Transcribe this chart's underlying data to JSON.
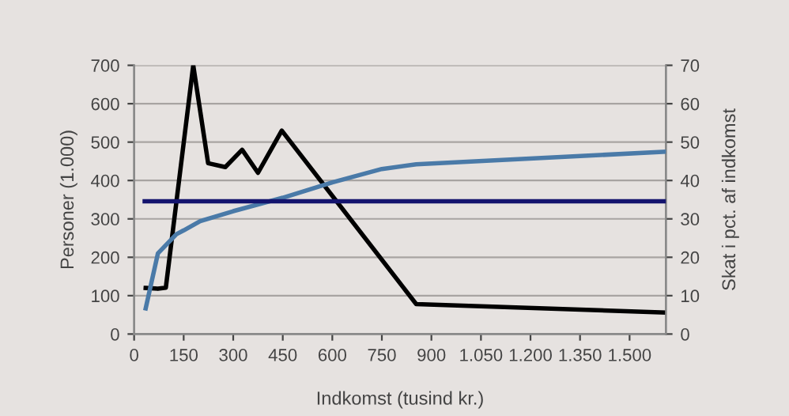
{
  "chart_data": {
    "type": "line",
    "xlabel": "Indkomst (tusind kr.)",
    "ylabel": "Personer (1.000)",
    "y2label": "Skat i pct. af indkomst",
    "series": [
      {
        "color": "#000000",
        "x": [
          35,
          72,
          96,
          179,
          224,
          276,
          327,
          375,
          447,
          854,
          1610
        ],
        "values": [
          120,
          118,
          121,
          700,
          445,
          435,
          480,
          420,
          530,
          78,
          56
        ]
      },
      {
        "color": "#4a7aa8",
        "axis": "y2",
        "x": [
          35,
          72,
          128,
          150,
          200,
          300,
          450,
          600,
          750,
          854,
          1610
        ],
        "values": [
          6.7,
          21,
          26,
          27,
          29.4,
          32,
          35.5,
          39.5,
          43,
          44.2,
          47.5
        ]
      },
      {
        "color": "#14146e",
        "axis": "y2",
        "x": [
          32,
          1610
        ],
        "values": [
          34.6,
          34.6
        ]
      }
    ],
    "xlim": [
      0,
      1610
    ],
    "xticks": [
      0,
      150,
      300,
      450,
      600,
      750,
      900,
      {
        "value": 1050,
        "label": "1.050"
      },
      {
        "value": 1200,
        "label": "1.200"
      },
      {
        "value": 1350,
        "label": "1.350"
      },
      {
        "value": 1500,
        "label": "1.500"
      }
    ],
    "ylim": [
      0,
      700
    ],
    "yticks": [
      0,
      100,
      200,
      300,
      400,
      500,
      600,
      700
    ],
    "y2lim": [
      0,
      70
    ],
    "y2ticks": [
      0,
      10,
      20,
      30,
      40,
      50,
      60,
      70
    ],
    "grid": "y",
    "legend": false
  }
}
